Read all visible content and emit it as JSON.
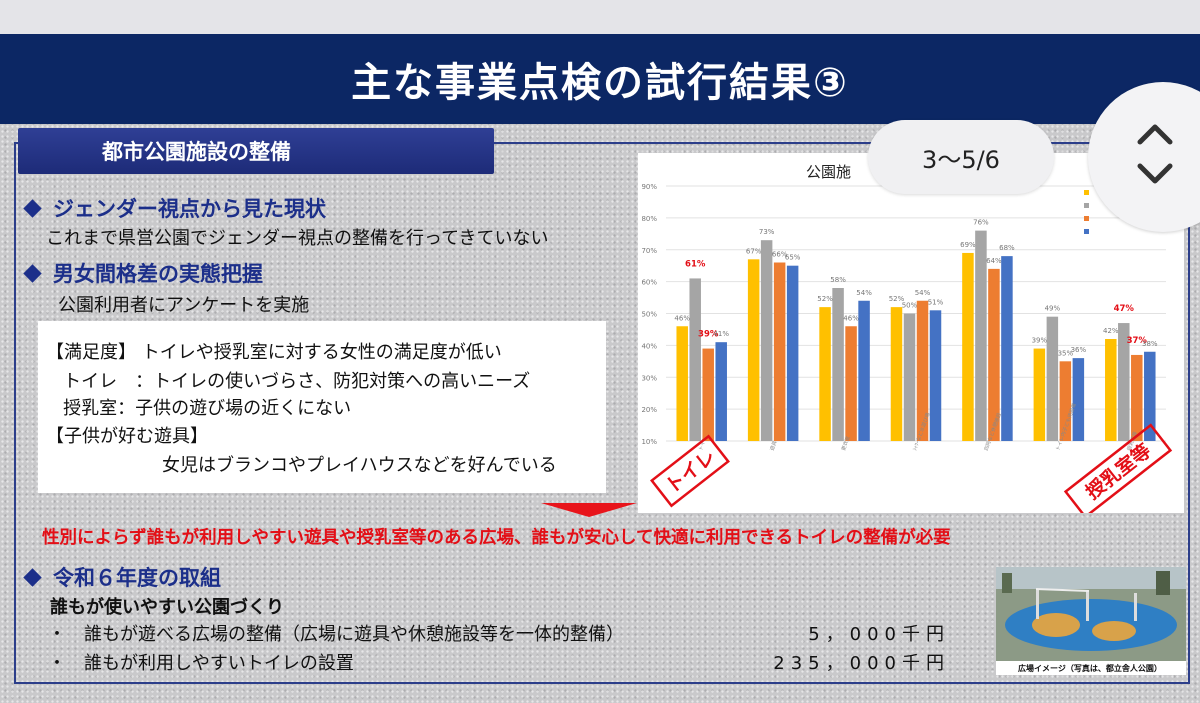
{
  "slide": {
    "title": "主な事業点検の試行結果③",
    "section_tab": "都市公園施設の整備",
    "headings": {
      "current": "ジェンダー視点から見た現状",
      "gap": "男女間格差の実態把握",
      "r6": "令和６年度の取組"
    },
    "current_text": "これまで県営公園でジェンダー視点の整備を行ってきていない",
    "gap_text": "公園利用者にアンケートを実施",
    "survey_box": {
      "line1": "【満足度】 トイレや授乳室に対する女性の満足度が低い",
      "line2": "   トイレ　：トイレの使いづらさ、防犯対策への高いニーズ",
      "line3": "   授乳室：子供の遊び場の近くにない",
      "line4": "【子供が好む遊具】",
      "line5": "女児はブランコやプレイハウスなどを好んでいる"
    },
    "conclusion": "性別によらず誰もが利用しやすい遊具や授乳室等のある広場、誰もが安心して快適に利用できるトイレの整備が必要",
    "subhead": "誰もが使いやすい公園づくり",
    "items": [
      {
        "label": "・　誰もが遊べる広場の整備（広場に遊具や休憩施設等を一体的整備）",
        "amount": "5，000千円"
      },
      {
        "label": "・　誰もが利用しやすいトイレの設置",
        "amount": "235，000千円"
      }
    ],
    "photo_caption": "広場イメージ（写真は、都立舎人公園）"
  },
  "overlay": {
    "page_indicator": "3〜5/6",
    "scroll_icon": "chevron-up-down-icon"
  },
  "colors": {
    "banner": "#0c2764",
    "heading": "#1c2f8a",
    "accent_red": "#e30f17",
    "series": [
      "#ffc000",
      "#a5a5a5",
      "#ed7d31",
      "#4472c4"
    ]
  },
  "chart_data": {
    "type": "bar",
    "title": "公園施",
    "ylim": [
      10,
      90
    ],
    "yticks": [
      "10%",
      "20%",
      "30%",
      "40%",
      "50%",
      "60%",
      "70%",
      "80%",
      "90%"
    ],
    "categories": [
      "トイレ",
      "遊具",
      "更衣室",
      "ｼｬﾜｰなど水遊び場",
      "四阿など休憩施設",
      "トイレ内子ども用設備",
      "授乳室等"
    ],
    "stamps": {
      "first": "トイレ",
      "last": "授乳室等"
    },
    "series": [
      {
        "values": [
          46,
          67,
          52,
          52,
          69,
          39,
          42
        ]
      },
      {
        "values": [
          61,
          73,
          58,
          50,
          76,
          49,
          47
        ]
      },
      {
        "values": [
          39,
          66,
          46,
          54,
          64,
          35,
          37
        ]
      },
      {
        "values": [
          41,
          65,
          54,
          51,
          68,
          36,
          38
        ]
      }
    ],
    "highlight_labels": [
      [
        1,
        0
      ],
      [
        2,
        0
      ],
      [
        1,
        6
      ],
      [
        2,
        6
      ]
    ],
    "grid": true,
    "legend": "top-right"
  }
}
